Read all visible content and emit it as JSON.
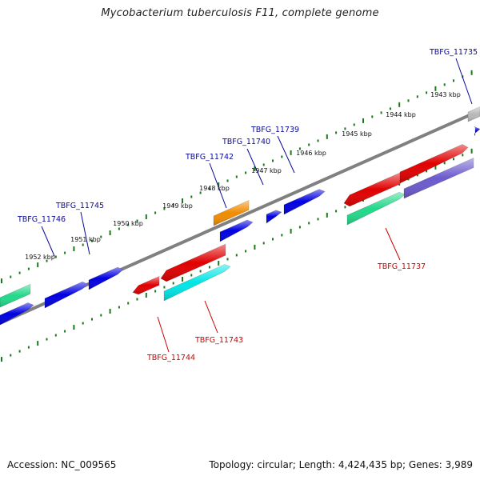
{
  "title": "Mycobacterium tuberculosis F11, complete genome",
  "footer": {
    "accession": "Accession: NC_009565",
    "summary": "Topology: circular; Length: 4,424,435 bp; Genes: 3,989"
  },
  "colors": {
    "backbone": "#808080",
    "tick": "#1a7a1a",
    "label_forward": "#0a0a9a",
    "label_reverse": "#cc0000",
    "gene_blue": "#0000e0",
    "gene_red": "#e00000",
    "gene_orange": "#f08c00",
    "gene_cyan": "#00e5e5",
    "gene_teal": "#22d88a",
    "gene_violet": "#6a5acd",
    "gene_gray": "#b8b8b8"
  },
  "scale_ticks": [
    {
      "text": "1952 kbp"
    },
    {
      "text": "1951 kbp"
    },
    {
      "text": "1950 kbp"
    },
    {
      "text": "1949 kbp"
    },
    {
      "text": "1948 kbp"
    },
    {
      "text": "1947 kbp"
    },
    {
      "text": "1946 kbp"
    },
    {
      "text": "1945 kbp"
    },
    {
      "text": "1944 kbp"
    },
    {
      "text": "1943 kbp"
    }
  ],
  "gene_labels": [
    {
      "text": "TBFG_11746",
      "strand": "forward"
    },
    {
      "text": "TBFG_11745",
      "strand": "forward"
    },
    {
      "text": "TBFG_11742",
      "strand": "forward"
    },
    {
      "text": "TBFG_11740",
      "strand": "forward"
    },
    {
      "text": "TBFG_11739",
      "strand": "forward"
    },
    {
      "text": "TBFG_11735",
      "strand": "forward"
    },
    {
      "text": "TBFG_11744",
      "strand": "reverse"
    },
    {
      "text": "TBFG_11743",
      "strand": "reverse"
    },
    {
      "text": "TBFG_11737",
      "strand": "reverse"
    }
  ],
  "features": [
    {
      "name": "gene-teal-left",
      "color": "gene_teal"
    },
    {
      "name": "gene-blue-left",
      "color": "gene_blue"
    },
    {
      "name": "gene-blue-11746",
      "color": "gene_blue"
    },
    {
      "name": "gene-blue-11745",
      "color": "gene_blue"
    },
    {
      "name": "gene-red-11744",
      "color": "gene_red"
    },
    {
      "name": "gene-red-11743",
      "color": "gene_red"
    },
    {
      "name": "gene-cyan-11743",
      "color": "gene_cyan"
    },
    {
      "name": "gene-orange-11742",
      "color": "gene_orange"
    },
    {
      "name": "gene-blue-11742",
      "color": "gene_blue"
    },
    {
      "name": "gene-blue-11740",
      "color": "gene_blue"
    },
    {
      "name": "gene-blue-11739",
      "color": "gene_blue"
    },
    {
      "name": "gene-red-11738",
      "color": "gene_red"
    },
    {
      "name": "gene-teal-11738",
      "color": "gene_teal"
    },
    {
      "name": "gene-red-11737",
      "color": "gene_red"
    },
    {
      "name": "gene-violet-11737",
      "color": "gene_violet"
    },
    {
      "name": "gene-gray-11735",
      "color": "gene_gray"
    },
    {
      "name": "gene-blue-11735",
      "color": "gene_blue"
    }
  ]
}
